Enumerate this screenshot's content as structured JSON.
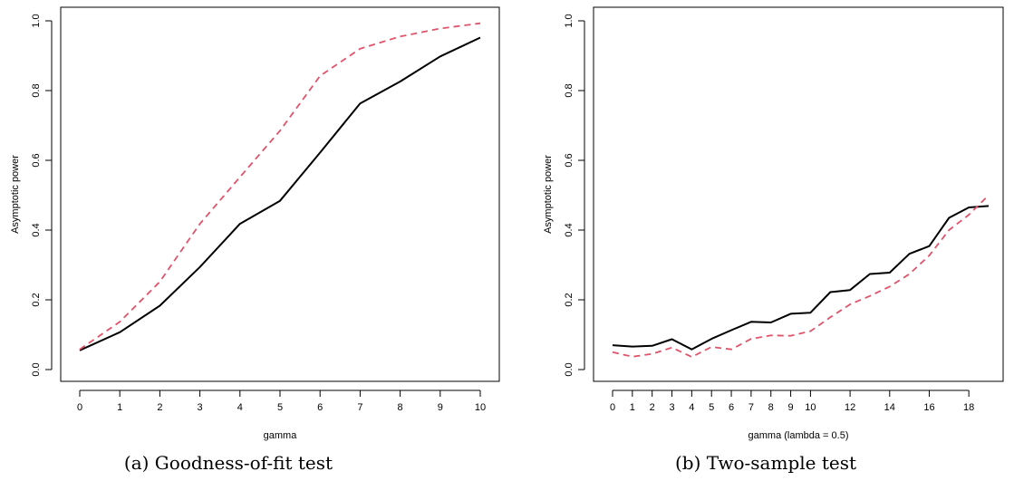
{
  "chart_data": [
    {
      "type": "line",
      "xlabel": "gamma",
      "ylabel": "Asymptotic power",
      "caption": "(a) Goodness-of-fit test",
      "x": [
        0,
        1,
        2,
        3,
        4,
        5,
        6,
        7,
        8,
        9,
        10
      ],
      "xticks": [
        "0",
        "1",
        "2",
        "3",
        "4",
        "5",
        "6",
        "7",
        "8",
        "9",
        "10"
      ],
      "yticks": [
        "0.0",
        "0.2",
        "0.4",
        "0.6",
        "0.8",
        "1.0"
      ],
      "xlim": [
        0,
        10
      ],
      "ylim": [
        0,
        1
      ],
      "series": [
        {
          "style": "solid",
          "color": "#000000",
          "values": [
            0.055,
            0.107,
            0.183,
            0.294,
            0.418,
            0.484,
            0.622,
            0.763,
            0.826,
            0.898,
            0.952
          ]
        },
        {
          "style": "dashed",
          "color": "#DF536B",
          "values": [
            0.058,
            0.137,
            0.252,
            0.418,
            0.552,
            0.685,
            0.842,
            0.92,
            0.955,
            0.978,
            0.993
          ]
        }
      ]
    },
    {
      "type": "line",
      "xlabel": "gamma (lambda = 0.5)",
      "ylabel": "Asymptotic power",
      "caption": "(b) Two-sample test",
      "x": [
        0,
        1,
        2,
        3,
        4,
        5,
        6,
        7,
        8,
        9,
        10,
        11,
        12,
        13,
        14,
        15,
        16,
        17,
        18,
        19
      ],
      "xticks": [
        "0",
        "1",
        "2",
        "3",
        "4",
        "5",
        "6",
        "7",
        "8",
        "9",
        "10",
        "12",
        "14",
        "16",
        "18"
      ],
      "xtick_values": [
        0,
        1,
        2,
        3,
        4,
        5,
        6,
        7,
        8,
        9,
        10,
        12,
        14,
        16,
        18
      ],
      "yticks": [
        "0.0",
        "0.2",
        "0.4",
        "0.6",
        "0.8",
        "1.0"
      ],
      "xlim": [
        0,
        19
      ],
      "ylim": [
        0,
        1
      ],
      "series": [
        {
          "style": "solid",
          "color": "#000000",
          "values": [
            0.07,
            0.066,
            0.068,
            0.087,
            0.058,
            0.088,
            0.113,
            0.137,
            0.135,
            0.16,
            0.163,
            0.222,
            0.228,
            0.274,
            0.278,
            0.332,
            0.354,
            0.435,
            0.465,
            0.469
          ]
        },
        {
          "style": "dashed",
          "color": "#DF536B",
          "values": [
            0.05,
            0.037,
            0.045,
            0.063,
            0.036,
            0.065,
            0.058,
            0.088,
            0.098,
            0.097,
            0.11,
            0.15,
            0.187,
            0.211,
            0.238,
            0.274,
            0.327,
            0.4,
            0.444,
            0.5
          ]
        }
      ]
    }
  ]
}
